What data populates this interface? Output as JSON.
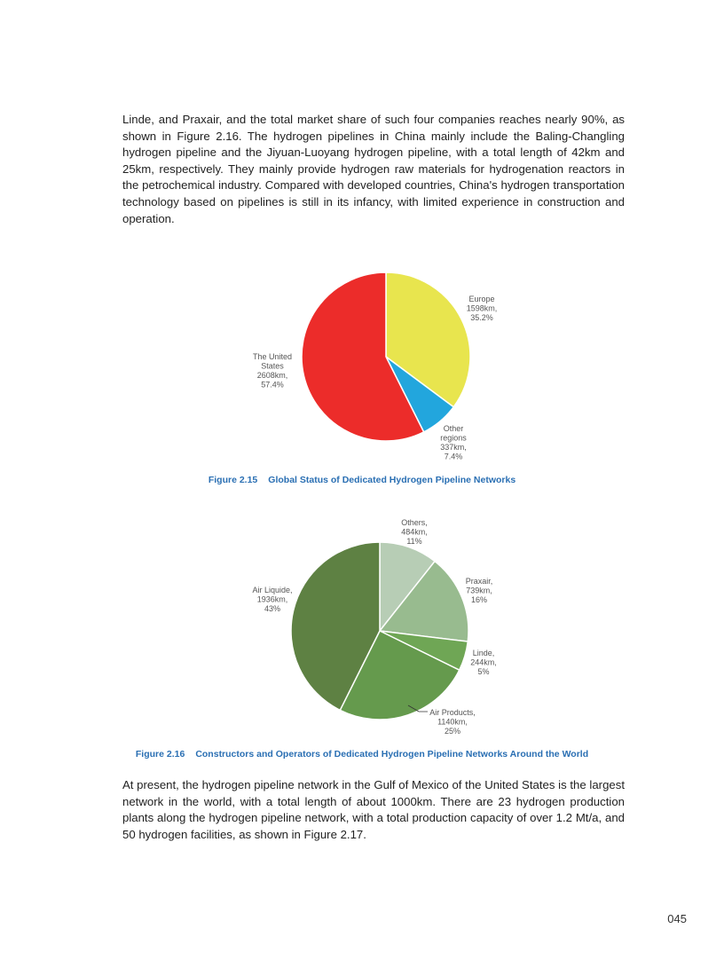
{
  "paragraphs": [
    "Linde, and Praxair, and the total market share of such four companies reaches nearly 90%, as shown in Figure 2.16. The hydrogen pipelines in China mainly include the Baling-Changling hydrogen pipeline and the Jiyuan-Luoyang hydrogen pipeline, with a total length of 42km and 25km, respectively. They mainly provide hydrogen raw materials for hydrogenation reactors in the petrochemical industry. Compared with developed countries, China's hydrogen transportation technology based on pipelines is still in its infancy, with limited experience in construction and operation.",
    "At present, the hydrogen pipeline network in the Gulf of Mexico of the United States is the largest network in the world, with a total length of about 1000km. There are 23 hydrogen production plants along the hydrogen pipeline network, with a total production capacity of over 1.2 Mt/a, and 50 hydrogen facilities, as shown in Figure 2.17."
  ],
  "figures": [
    {
      "number": "Figure 2.15",
      "title": "Global Status of Dedicated Hydrogen Pipeline Networks"
    },
    {
      "number": "Figure 2.16",
      "title": "Constructors and Operators of Dedicated Hydrogen Pipeline Networks Around the World"
    }
  ],
  "page_number": "045",
  "chart_data": [
    {
      "type": "pie",
      "title": "Global Status of Dedicated Hydrogen Pipeline Networks",
      "start": "top",
      "direction": "clockwise",
      "slices": [
        {
          "label": [
            "Europe",
            "1598km,",
            "35.2%"
          ],
          "value": 1598,
          "percent": 35.2,
          "color": "#e8e54e"
        },
        {
          "label": [
            "Other",
            "regions",
            "337km,",
            "7.4%"
          ],
          "value": 337,
          "percent": 7.4,
          "color": "#22a6dd"
        },
        {
          "label": [
            "The United",
            "States",
            "2608km,",
            "57.4%"
          ],
          "value": 2608,
          "percent": 57.4,
          "color": "#ec2c2a"
        }
      ]
    },
    {
      "type": "pie",
      "title": "Constructors and Operators of Dedicated Hydrogen Pipeline Networks Around the World",
      "start": "top",
      "direction": "clockwise",
      "slices": [
        {
          "label": [
            "Others,",
            "484km,",
            "11%"
          ],
          "value": 484,
          "percent": 11,
          "color": "#b7cdb5"
        },
        {
          "label": [
            "Praxair,",
            "739km,",
            "16%"
          ],
          "value": 739,
          "percent": 16,
          "color": "#98bb8f"
        },
        {
          "label": [
            "Linde,",
            "244km,",
            "5%"
          ],
          "value": 244,
          "percent": 5,
          "color": "#6fa655"
        },
        {
          "label": [
            "Air Products,",
            "1140km,",
            "25%"
          ],
          "value": 1140,
          "percent": 25,
          "color": "#659a4d"
        },
        {
          "label": [
            "Air Liquide,",
            "1936km,",
            "43%"
          ],
          "value": 1936,
          "percent": 43,
          "color": "#5e8143"
        }
      ]
    }
  ]
}
